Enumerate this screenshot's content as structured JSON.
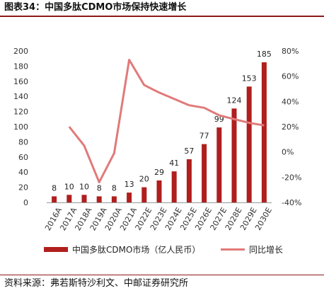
{
  "title": "图表34：中国多肽CDMO市场保持快速增长",
  "source": "资料来源：弗若斯特沙利文、中邮证券研究所",
  "chart_data": {
    "type": "bar+line",
    "categories": [
      "2016A",
      "2017A",
      "2018A",
      "2019A",
      "2020A",
      "2021A",
      "2022E",
      "2023E",
      "2024E",
      "2025E",
      "2026E",
      "2027E",
      "2028E",
      "2029E",
      "2030E"
    ],
    "series": [
      {
        "name": "中国多肽CDMO市场（亿人民币）",
        "type": "bar",
        "axis": "left",
        "color": "#b01e1e",
        "values": [
          8,
          10,
          10,
          8,
          8,
          13,
          20,
          29,
          41,
          57,
          77,
          99,
          124,
          153,
          185
        ]
      },
      {
        "name": "同比增长",
        "type": "line",
        "axis": "right",
        "color": "#e07a7a",
        "values": [
          null,
          20,
          5,
          -24,
          -1,
          73,
          53,
          47,
          42,
          37,
          35,
          29,
          26,
          23,
          21
        ]
      }
    ],
    "y_left": {
      "ylim": [
        0,
        200
      ],
      "ticks": [
        0,
        20,
        40,
        60,
        80,
        100,
        120,
        140,
        160,
        180,
        200
      ]
    },
    "y_right": {
      "ylim": [
        -40,
        80
      ],
      "ticks": [
        "-40%",
        "-20%",
        "0%",
        "20%",
        "40%",
        "60%",
        "80%"
      ]
    },
    "legend_position": "bottom"
  }
}
